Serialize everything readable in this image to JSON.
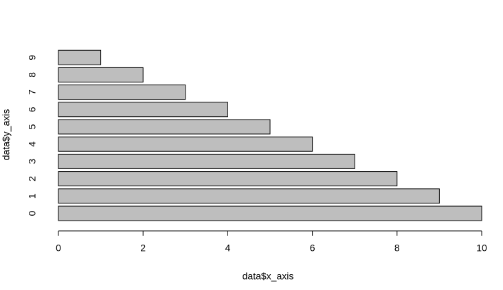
{
  "chart_data": {
    "type": "barh",
    "categories": [
      "0",
      "1",
      "2",
      "3",
      "4",
      "5",
      "6",
      "7",
      "8",
      "9"
    ],
    "values": [
      10,
      9,
      8,
      7,
      6,
      5,
      4,
      3,
      2,
      1
    ],
    "color": "#bebebe",
    "xlabel": "data$x_axis",
    "ylabel": "data$y_axis",
    "xlim": [
      0,
      10
    ],
    "xticks": [
      0,
      2,
      4,
      6,
      8,
      10
    ]
  }
}
